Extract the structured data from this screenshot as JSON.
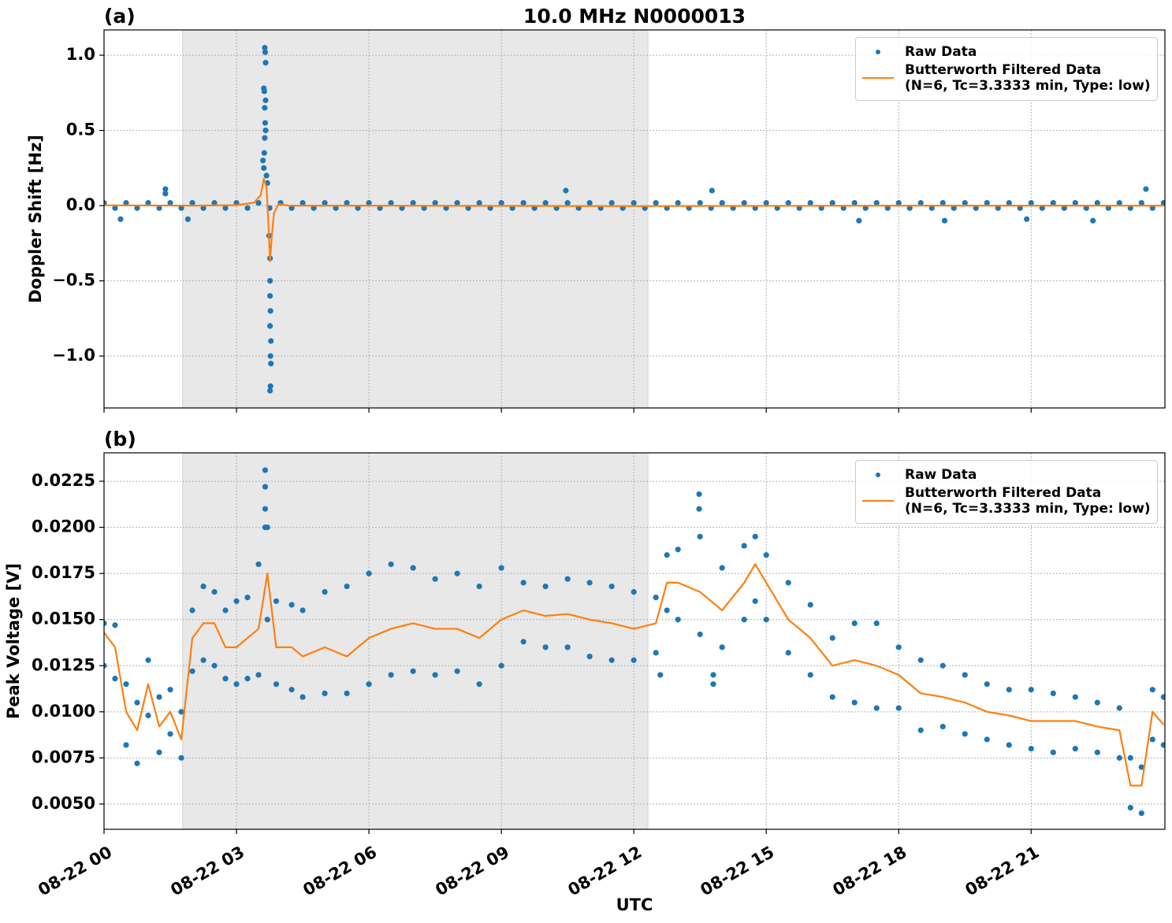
{
  "chart_data": [
    {
      "type": "line",
      "title": "10.0 MHz N0000013",
      "panel_label": "(a)",
      "ylabel": "Doppler Shift [Hz]",
      "xlim": [
        0,
        24.03
      ],
      "xticks": [
        0,
        3,
        6,
        9,
        12,
        15,
        18,
        21
      ],
      "ylim": [
        -1.345,
        1.168
      ],
      "yticks": [
        {
          "value": -1.0,
          "label": "−1.0"
        },
        {
          "value": -0.5,
          "label": "−0.5"
        },
        {
          "value": 0.0,
          "label": "0.0"
        },
        {
          "value": 0.5,
          "label": "0.5"
        },
        {
          "value": 1.0,
          "label": "1.0"
        }
      ],
      "grid": true,
      "legend": "upper right",
      "shaded_span": [
        1.78,
        12.32
      ],
      "series": [
        {
          "name": "Raw Data",
          "kind": "scatter",
          "color": "#1f77b4",
          "x": [
            0,
            0.25,
            0.5,
            0.75,
            1,
            1.25,
            1.5,
            1.75,
            2,
            2.25,
            2.5,
            2.75,
            3,
            3.25,
            3.5,
            3.75,
            4,
            4.25,
            4.5,
            4.75,
            5,
            5.25,
            5.5,
            5.75,
            6,
            6.25,
            6.5,
            6.75,
            7,
            7.25,
            7.5,
            7.75,
            8,
            8.25,
            8.5,
            8.75,
            9,
            9.25,
            9.5,
            9.75,
            10,
            10.25,
            10.5,
            10.75,
            11,
            11.25,
            11.5,
            11.75,
            12,
            12.25,
            12.5,
            12.75,
            13,
            13.25,
            13.5,
            13.75,
            14,
            14.25,
            14.5,
            14.75,
            15,
            15.25,
            15.5,
            15.75,
            16,
            16.25,
            16.5,
            16.75,
            17,
            17.25,
            17.5,
            17.75,
            18,
            18.25,
            18.5,
            18.75,
            19,
            19.25,
            19.5,
            19.75,
            20,
            20.25,
            20.5,
            20.75,
            21,
            21.25,
            21.5,
            21.75,
            22,
            22.25,
            22.5,
            22.75,
            23,
            23.25,
            23.5,
            23.75,
            24,
            0.375,
            1.39,
            1.39,
            1.9,
            10.46,
            13.77,
            17.1,
            19.04,
            20.9,
            22.4,
            23.6,
            3.64,
            3.65,
            3.66,
            3.62,
            3.63,
            3.66,
            3.64,
            3.65,
            3.66,
            3.64,
            3.63,
            3.6,
            3.62,
            3.68,
            3.7,
            3.74,
            3.76,
            3.76,
            3.76,
            3.77,
            3.76,
            3.78,
            3.77,
            3.78,
            3.77,
            3.76
          ],
          "values": [
            0.018,
            -0.016,
            0.018,
            -0.016,
            0.018,
            -0.016,
            0.018,
            -0.016,
            0.018,
            -0.016,
            0.018,
            -0.016,
            0.018,
            -0.016,
            0.018,
            -0.016,
            0.018,
            -0.016,
            0.018,
            -0.016,
            0.018,
            -0.016,
            0.018,
            -0.016,
            0.018,
            -0.016,
            0.018,
            -0.016,
            0.018,
            -0.016,
            0.018,
            -0.016,
            0.018,
            -0.016,
            0.018,
            -0.016,
            0.018,
            -0.016,
            0.018,
            -0.016,
            0.018,
            -0.016,
            0.018,
            -0.016,
            0.018,
            -0.016,
            0.018,
            -0.016,
            0.018,
            -0.016,
            0.018,
            -0.016,
            0.018,
            -0.016,
            0.018,
            -0.016,
            0.018,
            -0.016,
            0.018,
            -0.016,
            0.018,
            -0.016,
            0.018,
            -0.016,
            0.018,
            -0.016,
            0.018,
            -0.016,
            0.018,
            -0.016,
            0.018,
            -0.016,
            0.018,
            -0.016,
            0.018,
            -0.016,
            0.018,
            -0.016,
            0.018,
            -0.016,
            0.018,
            -0.016,
            0.018,
            -0.016,
            0.018,
            -0.016,
            0.018,
            -0.016,
            0.018,
            -0.016,
            0.018,
            -0.016,
            0.018,
            -0.016,
            0.018,
            -0.016,
            0.018,
            -0.09,
            0.11,
            0.08,
            -0.09,
            0.1,
            0.1,
            -0.1,
            -0.1,
            -0.09,
            -0.1,
            0.11,
            1.05,
            1.02,
            0.95,
            0.78,
            0.76,
            0.7,
            0.65,
            0.55,
            0.5,
            0.45,
            0.35,
            0.3,
            0.25,
            0.2,
            0.15,
            -0.2,
            -0.35,
            -0.5,
            -0.6,
            -0.7,
            -0.8,
            -0.9,
            -1.0,
            -1.05,
            -1.2,
            -1.23
          ]
        },
        {
          "name": "Butterworth Filtered Data\n(N=6, Tc=3.3333 min, Type: low)",
          "kind": "line",
          "color": "#ff7f0e",
          "x": [
            0,
            2,
            3,
            3.4,
            3.55,
            3.62,
            3.68,
            3.72,
            3.76,
            3.8,
            3.85,
            3.95,
            4.2,
            6,
            12,
            18,
            24
          ],
          "values": [
            0.002,
            0,
            0.003,
            0.02,
            0.07,
            0.18,
            0.12,
            -0.1,
            -0.37,
            -0.2,
            -0.05,
            0.01,
            0,
            0,
            -0.003,
            0,
            0
          ]
        }
      ]
    },
    {
      "type": "line",
      "panel_label": "(b)",
      "ylabel": "Peak Voltage [V]",
      "xlabel": "UTC",
      "xlim": [
        0,
        24.03
      ],
      "xticks": [
        {
          "value": 0,
          "label": "08-22 00"
        },
        {
          "value": 3,
          "label": "08-22 03"
        },
        {
          "value": 6,
          "label": "08-22 06"
        },
        {
          "value": 9,
          "label": "08-22 09"
        },
        {
          "value": 12,
          "label": "08-22 12"
        },
        {
          "value": 15,
          "label": "08-22 15"
        },
        {
          "value": 18,
          "label": "08-22 18"
        },
        {
          "value": 21,
          "label": "08-22 21"
        }
      ],
      "ylim": [
        0.00363,
        0.02404
      ],
      "yticks": [
        {
          "value": 0.005,
          "label": "0.0050"
        },
        {
          "value": 0.0075,
          "label": "0.0075"
        },
        {
          "value": 0.01,
          "label": "0.0100"
        },
        {
          "value": 0.0125,
          "label": "0.0125"
        },
        {
          "value": 0.015,
          "label": "0.0150"
        },
        {
          "value": 0.0175,
          "label": "0.0175"
        },
        {
          "value": 0.02,
          "label": "0.0200"
        },
        {
          "value": 0.0225,
          "label": "0.0225"
        }
      ],
      "grid": true,
      "legend": "upper right",
      "shaded_span": [
        1.78,
        12.32
      ],
      "series": [
        {
          "name": "Raw Data",
          "kind": "scatter",
          "color": "#1f77b4",
          "x": [
            0,
            0,
            0.25,
            0.25,
            0.5,
            0.5,
            0.75,
            0.75,
            1,
            1,
            1.25,
            1.25,
            1.5,
            1.5,
            1.75,
            1.75,
            2,
            2,
            2.25,
            2.25,
            2.5,
            2.5,
            2.75,
            2.75,
            3,
            3,
            3.25,
            3.25,
            3.5,
            3.5,
            3.7,
            3.7,
            3.9,
            3.9,
            4.25,
            4.25,
            4.5,
            4.5,
            5,
            5,
            5.5,
            5.5,
            6,
            6,
            6.5,
            6.5,
            7,
            7,
            7.5,
            7.5,
            8,
            8,
            8.5,
            8.5,
            9,
            9,
            9.5,
            9.5,
            10,
            10,
            10.5,
            10.5,
            11,
            11,
            11.5,
            11.5,
            12,
            12,
            12.5,
            12.5,
            12.75,
            12.75,
            13,
            13,
            13.5,
            13.5,
            14,
            14,
            14.5,
            14.5,
            14.75,
            14.75,
            15,
            15,
            15.5,
            15.5,
            16,
            16,
            16.5,
            16.5,
            17,
            17,
            17.5,
            17.5,
            18,
            18,
            18.5,
            18.5,
            19,
            19,
            19.5,
            19.5,
            20,
            20,
            20.5,
            20.5,
            21,
            21,
            21.5,
            21.5,
            22,
            22,
            22.5,
            22.5,
            23,
            23,
            23.25,
            23.25,
            23.5,
            23.5,
            23.75,
            23.75,
            24,
            24,
            3.65,
            3.65,
            3.65,
            3.65,
            13.48,
            13.48,
            13.8,
            13.8,
            12.6
          ],
          "values": [
            0.0125,
            0.0148,
            0.0118,
            0.0147,
            0.0082,
            0.0115,
            0.0072,
            0.0105,
            0.0098,
            0.0128,
            0.0078,
            0.0108,
            0.0088,
            0.0112,
            0.0075,
            0.01,
            0.0122,
            0.0155,
            0.0128,
            0.0168,
            0.0125,
            0.0165,
            0.0118,
            0.0155,
            0.0115,
            0.016,
            0.0118,
            0.0162,
            0.012,
            0.018,
            0.015,
            0.02,
            0.0115,
            0.016,
            0.0112,
            0.0158,
            0.0108,
            0.0155,
            0.011,
            0.0165,
            0.011,
            0.0168,
            0.0115,
            0.0175,
            0.012,
            0.018,
            0.0122,
            0.0178,
            0.012,
            0.0172,
            0.0122,
            0.0175,
            0.0115,
            0.0168,
            0.0125,
            0.0178,
            0.0138,
            0.017,
            0.0135,
            0.0168,
            0.0135,
            0.0172,
            0.013,
            0.017,
            0.0128,
            0.0168,
            0.0128,
            0.0165,
            0.0132,
            0.0162,
            0.0155,
            0.0185,
            0.015,
            0.0188,
            0.0142,
            0.0195,
            0.0135,
            0.0178,
            0.015,
            0.019,
            0.016,
            0.0195,
            0.015,
            0.0185,
            0.0132,
            0.017,
            0.012,
            0.0158,
            0.0108,
            0.014,
            0.0105,
            0.0148,
            0.0102,
            0.0148,
            0.0102,
            0.0135,
            0.009,
            0.0128,
            0.0092,
            0.0125,
            0.0088,
            0.012,
            0.0085,
            0.0115,
            0.0082,
            0.0112,
            0.008,
            0.0112,
            0.0078,
            0.011,
            0.008,
            0.0108,
            0.0078,
            0.0105,
            0.0075,
            0.0102,
            0.0048,
            0.0075,
            0.0045,
            0.007,
            0.0085,
            0.0112,
            0.0082,
            0.0108,
            0.0231,
            0.0222,
            0.021,
            0.02,
            0.0218,
            0.021,
            0.0115,
            0.012,
            0.012
          ]
        },
        {
          "name": "Butterworth Filtered Data\n(N=6, Tc=3.3333 min, Type: low)",
          "kind": "line",
          "color": "#ff7f0e",
          "x": [
            0,
            0.25,
            0.5,
            0.75,
            1,
            1.25,
            1.5,
            1.75,
            2,
            2.25,
            2.5,
            2.75,
            3,
            3.25,
            3.5,
            3.7,
            3.9,
            4.25,
            4.5,
            5,
            5.5,
            6,
            6.5,
            7,
            7.5,
            8,
            8.5,
            9,
            9.5,
            10,
            10.5,
            11,
            11.5,
            12,
            12.5,
            12.75,
            13,
            13.5,
            14,
            14.5,
            14.75,
            15,
            15.5,
            16,
            16.5,
            17,
            17.5,
            18,
            18.5,
            19,
            19.5,
            20,
            20.5,
            21,
            21.5,
            22,
            22.5,
            23,
            23.25,
            23.5,
            23.75,
            24
          ],
          "values": [
            0.0143,
            0.0135,
            0.01,
            0.009,
            0.0115,
            0.0092,
            0.01,
            0.0085,
            0.014,
            0.0148,
            0.0148,
            0.0135,
            0.0135,
            0.014,
            0.0145,
            0.0175,
            0.0135,
            0.0135,
            0.013,
            0.0135,
            0.013,
            0.014,
            0.0145,
            0.0148,
            0.0145,
            0.0145,
            0.014,
            0.015,
            0.0155,
            0.0152,
            0.0153,
            0.015,
            0.0148,
            0.0145,
            0.0148,
            0.017,
            0.017,
            0.0165,
            0.0155,
            0.017,
            0.018,
            0.017,
            0.015,
            0.014,
            0.0125,
            0.0128,
            0.0125,
            0.012,
            0.011,
            0.0108,
            0.0105,
            0.01,
            0.0098,
            0.0095,
            0.0095,
            0.0095,
            0.0092,
            0.009,
            0.006,
            0.006,
            0.01,
            0.0093
          ]
        }
      ]
    }
  ]
}
